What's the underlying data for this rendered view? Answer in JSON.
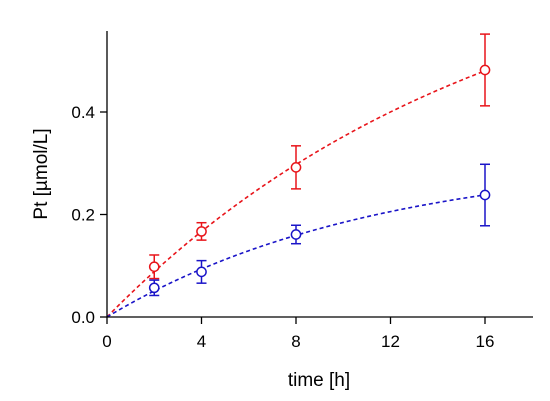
{
  "chart_data": {
    "type": "scatter",
    "title": "",
    "xlabel": "time [h]",
    "ylabel": "Pt [µmol/L]",
    "xlim": [
      0,
      18
    ],
    "ylim": [
      0,
      0.56
    ],
    "xticks": [
      0,
      4,
      8,
      12,
      16
    ],
    "yticks": [
      0.0,
      0.2,
      0.4
    ],
    "xtick_labels": [
      "0",
      "4",
      "8",
      "12",
      "16"
    ],
    "ytick_labels": [
      "0.0",
      "0.2",
      "0.4"
    ],
    "grid": false,
    "series": [
      {
        "color": "#e8141a",
        "marker": "open-circle",
        "x": [
          2,
          4,
          8,
          16
        ],
        "y": [
          0.098,
          0.167,
          0.292,
          0.482
        ],
        "yerr": [
          0.023,
          0.017,
          0.042,
          0.07
        ],
        "fit": "dashed"
      },
      {
        "color": "#1a14c8",
        "marker": "open-circle",
        "x": [
          2,
          4,
          8,
          16
        ],
        "y": [
          0.057,
          0.088,
          0.161,
          0.238
        ],
        "yerr": [
          0.015,
          0.022,
          0.018,
          0.06
        ],
        "fit": "dashed"
      }
    ]
  }
}
